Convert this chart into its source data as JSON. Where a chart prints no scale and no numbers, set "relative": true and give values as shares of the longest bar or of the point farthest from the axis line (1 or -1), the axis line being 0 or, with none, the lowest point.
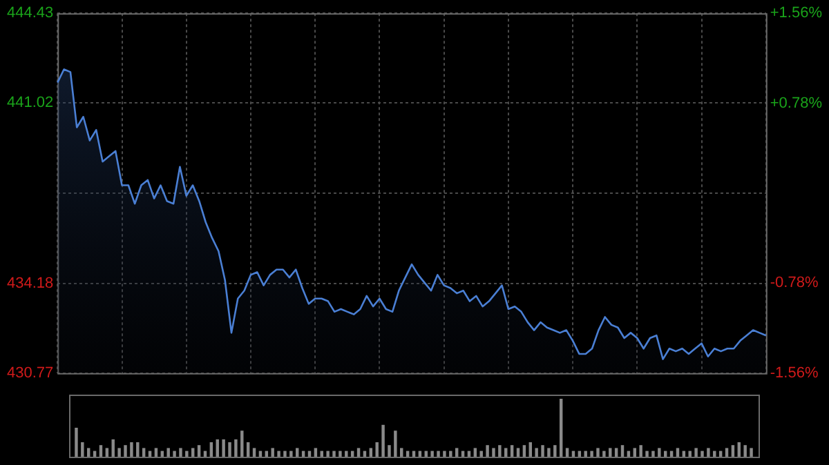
{
  "chart_data": [
    {
      "type": "area",
      "categories": [
        null,
        null,
        null,
        null,
        null,
        null,
        null,
        null,
        null,
        null,
        null,
        null,
        null,
        null,
        null,
        null,
        null,
        null,
        null,
        null,
        null,
        null,
        null,
        null,
        null,
        null,
        null,
        null,
        null,
        null,
        null,
        null,
        null,
        null,
        null,
        null,
        null,
        null,
        null,
        null,
        null,
        null,
        null,
        null,
        null,
        null,
        null,
        null,
        null,
        null,
        null,
        null,
        null,
        null,
        null,
        null,
        null,
        null,
        null,
        null,
        null,
        null,
        null,
        null,
        null,
        null,
        null,
        null,
        null,
        null,
        null,
        null,
        null,
        null,
        null,
        null,
        null,
        null,
        null,
        null,
        null,
        null,
        null,
        null,
        null,
        null,
        null,
        null,
        null,
        null,
        null,
        null,
        null,
        null,
        null,
        null,
        null,
        null,
        null,
        null,
        null,
        null,
        null,
        null,
        null,
        null,
        null,
        null,
        null,
        null,
        null
      ],
      "series": [
        {
          "color": "#4a7fd4",
          "values": [
            441.8,
            442.3,
            442.2,
            440.1,
            440.5,
            439.6,
            440.0,
            438.8,
            439.0,
            439.2,
            437.9,
            437.9,
            437.2,
            437.9,
            438.1,
            437.4,
            437.9,
            437.3,
            437.2,
            438.6,
            437.5,
            437.9,
            437.3,
            436.5,
            435.9,
            435.4,
            434.3,
            432.3,
            433.6,
            433.9,
            434.5,
            434.6,
            434.1,
            434.5,
            434.7,
            434.7,
            434.4,
            434.7,
            434.0,
            433.4,
            433.6,
            433.6,
            433.5,
            433.1,
            433.2,
            433.1,
            433.0,
            433.2,
            433.7,
            433.3,
            433.6,
            433.2,
            433.1,
            433.9,
            434.4,
            434.9,
            434.5,
            434.2,
            433.9,
            434.5,
            434.1,
            434.0,
            433.8,
            433.9,
            433.5,
            433.7,
            433.3,
            433.5,
            433.8,
            434.1,
            433.2,
            433.3,
            433.1,
            432.7,
            432.4,
            432.7,
            432.5,
            432.4,
            432.3,
            432.4,
            432.0,
            431.5,
            431.5,
            431.7,
            432.4,
            432.9,
            432.6,
            432.5,
            432.1,
            432.3,
            432.1,
            431.7,
            432.1,
            432.2,
            431.3,
            431.7,
            431.6,
            431.7,
            431.5,
            431.7,
            431.9,
            431.4,
            431.7,
            431.6,
            431.7,
            431.7,
            432.0,
            432.2,
            432.4,
            432.3,
            432.2
          ]
        }
      ],
      "ylim": [
        430.77,
        444.43
      ],
      "yticks": [
        444.43,
        441.02,
        {
          "value": 437.6,
          "label": null
        },
        434.18,
        430.77
      ],
      "y2lim": [
        -1.56,
        1.56
      ],
      "y2ticks": [
        {
          "value": 1.56,
          "label": "+1.56%"
        },
        {
          "value": 0.78,
          "label": "+0.78%"
        },
        {
          "value": 0,
          "label": null
        },
        {
          "value": -0.78,
          "label": "-0.78%"
        },
        {
          "value": -1.56,
          "label": "-1.56%"
        }
      ],
      "grid": true,
      "legend": false,
      "marker": "none",
      "tick_labels": "y"
    },
    {
      "type": "bar",
      "relative": true,
      "tick_labels": false,
      "legend": false,
      "color": "#8a8a8a",
      "categories": [
        null,
        null,
        null,
        null,
        null,
        null,
        null,
        null,
        null,
        null,
        null,
        null,
        null,
        null,
        null,
        null,
        null,
        null,
        null,
        null,
        null,
        null,
        null,
        null,
        null,
        null,
        null,
        null,
        null,
        null,
        null,
        null,
        null,
        null,
        null,
        null,
        null,
        null,
        null,
        null,
        null,
        null,
        null,
        null,
        null,
        null,
        null,
        null,
        null,
        null,
        null,
        null,
        null,
        null,
        null,
        null,
        null,
        null,
        null,
        null,
        null,
        null,
        null,
        null,
        null,
        null,
        null,
        null,
        null,
        null,
        null,
        null,
        null,
        null,
        null,
        null,
        null,
        null,
        null,
        null,
        null,
        null,
        null,
        null,
        null,
        null,
        null,
        null,
        null,
        null,
        null,
        null,
        null,
        null,
        null,
        null,
        null,
        null,
        null,
        null,
        null,
        null,
        null,
        null,
        null,
        null,
        null,
        null,
        null,
        null,
        null
      ],
      "values": [
        0.5,
        0.25,
        0.15,
        0.1,
        0.2,
        0.15,
        0.3,
        0.15,
        0.2,
        0.25,
        0.25,
        0.15,
        0.1,
        0.15,
        0.1,
        0.15,
        0.1,
        0.15,
        0.1,
        0.15,
        0.2,
        0.1,
        0.25,
        0.3,
        0.3,
        0.25,
        0.3,
        0.45,
        0.25,
        0.15,
        0.1,
        0.1,
        0.15,
        0.1,
        0.1,
        0.1,
        0.15,
        0.1,
        0.1,
        0.15,
        0.1,
        0.1,
        0.1,
        0.1,
        0.1,
        0.1,
        0.15,
        0.1,
        0.15,
        0.25,
        0.55,
        0.2,
        0.45,
        0.15,
        0.1,
        0.1,
        0.1,
        0.1,
        0.1,
        0.1,
        0.1,
        0.1,
        0.15,
        0.1,
        0.1,
        0.15,
        0.1,
        0.2,
        0.15,
        0.2,
        0.15,
        0.2,
        0.15,
        0.2,
        0.25,
        0.15,
        0.2,
        0.15,
        0.2,
        1.0,
        0.15,
        0.1,
        0.1,
        0.1,
        0.1,
        0.15,
        0.1,
        0.15,
        0.15,
        0.2,
        0.1,
        0.15,
        0.2,
        0.1,
        0.1,
        0.15,
        0.1,
        0.1,
        0.15,
        0.1,
        0.1,
        0.15,
        0.1,
        0.15,
        0.1,
        0.1,
        0.15,
        0.2,
        0.25,
        0.2,
        0.15
      ]
    }
  ]
}
